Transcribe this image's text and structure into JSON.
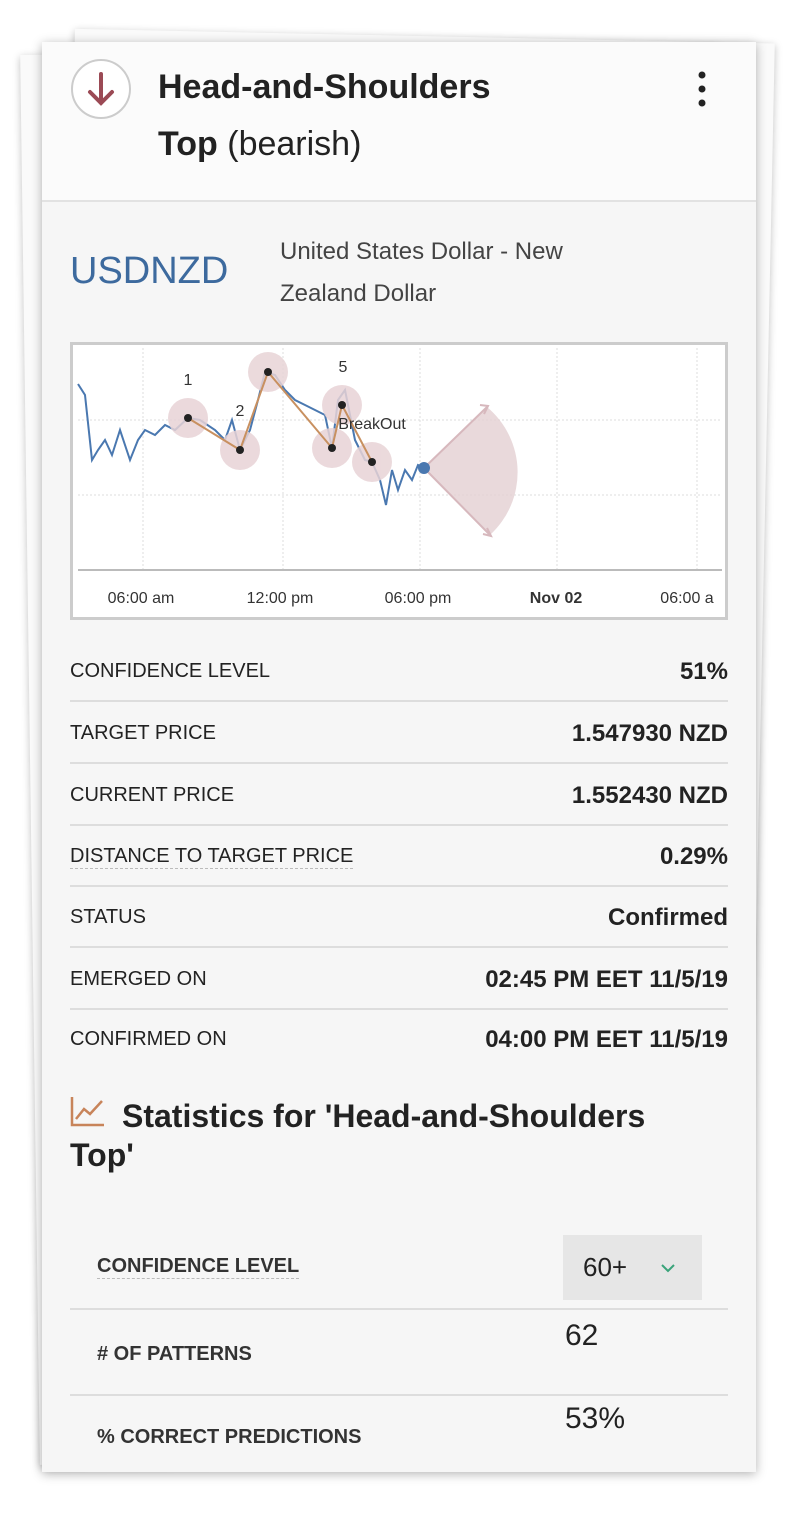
{
  "header": {
    "title": "Head-and-Shoulders",
    "title_line2": "Top",
    "title_suffix": "(bearish)"
  },
  "instrument": {
    "symbol": "USDNZD",
    "name_line1": "United States Dollar - New",
    "name_line2": "Zealand Dollar"
  },
  "chart": {
    "x_labels": [
      "06:00 am",
      "12:00 pm",
      "06:00 pm",
      "Nov 02",
      "06:00 a"
    ],
    "point_labels": [
      "1",
      "2",
      "5"
    ],
    "annotation": "BreakOut"
  },
  "details": [
    {
      "label": "CONFIDENCE LEVEL",
      "value": "51%"
    },
    {
      "label": "TARGET PRICE",
      "value": "1.547930 NZD"
    },
    {
      "label": "CURRENT PRICE",
      "value": "1.552430 NZD"
    },
    {
      "label": "DISTANCE TO TARGET PRICE",
      "value": "0.29%"
    },
    {
      "label": "STATUS",
      "value": "Confirmed"
    },
    {
      "label": "EMERGED ON",
      "value": "02:45 PM EET 11/5/19"
    },
    {
      "label": "CONFIRMED ON",
      "value": "04:00 PM EET 11/5/19"
    }
  ],
  "statistics": {
    "title_line1": "Statistics for 'Head-and-Shoulders",
    "title_line2": "Top'",
    "rows": [
      {
        "label": "CONFIDENCE LEVEL",
        "value": "60+"
      },
      {
        "label": "# OF PATTERNS",
        "value": "62"
      },
      {
        "label": "% CORRECT PREDICTIONS",
        "value": "53%"
      }
    ]
  }
}
